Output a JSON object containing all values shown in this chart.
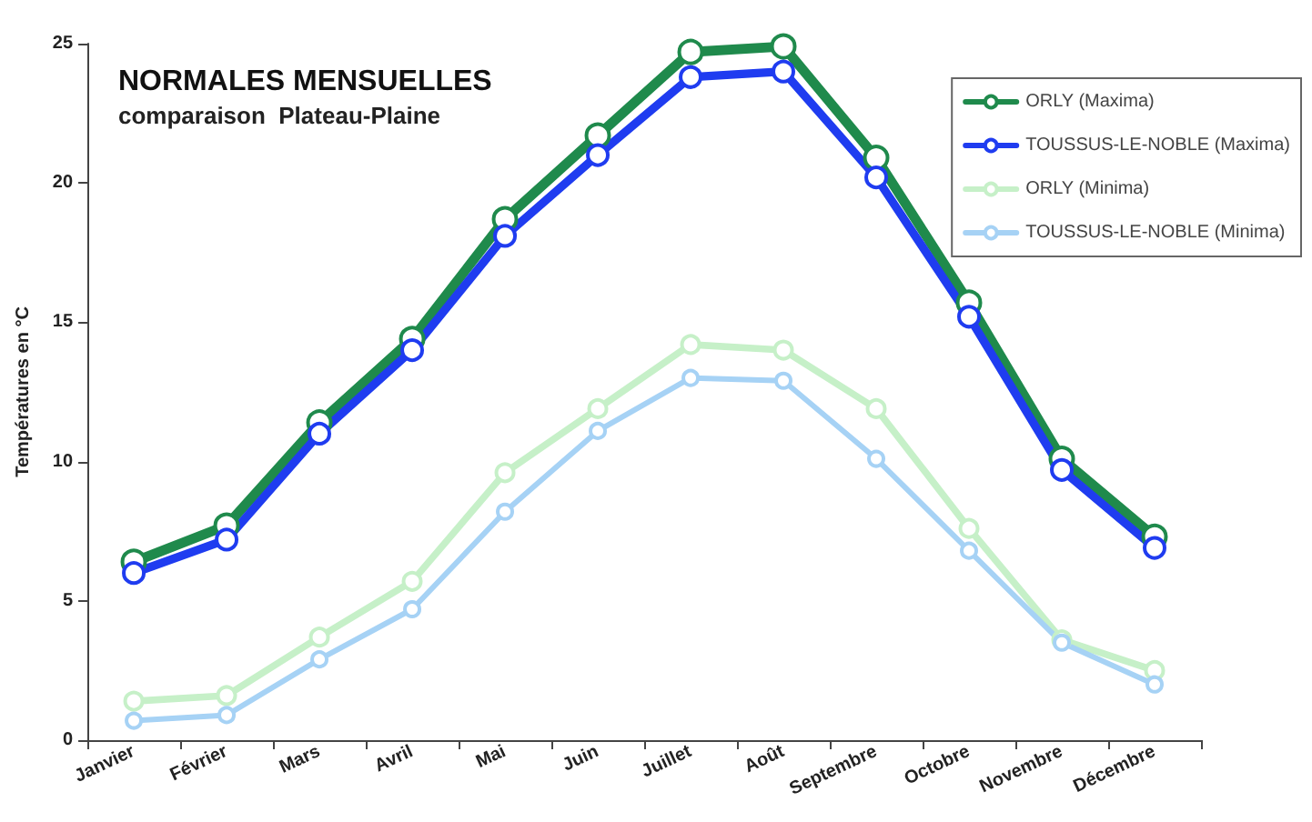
{
  "chart_data": {
    "type": "line",
    "title": "NORMALES MENSUELLES",
    "subtitle": "comparaison  Plateau-Plaine",
    "ylabel": "Températures en °C",
    "categories": [
      "Janvier",
      "Février",
      "Mars",
      "Avril",
      "Mai",
      "Juin",
      "Juillet",
      "Août",
      "Septembre",
      "Octobre",
      "Novembre",
      "Décembre"
    ],
    "series": [
      {
        "name": "ORLY (Maxima)",
        "color": "#1f8a4c",
        "values": [
          6.4,
          7.7,
          11.4,
          14.4,
          18.7,
          21.7,
          24.7,
          24.9,
          20.9,
          15.7,
          10.1,
          7.3
        ]
      },
      {
        "name": "TOUSSUS-LE-NOBLE (Maxima)",
        "color": "#1f3cf0",
        "values": [
          6.0,
          7.2,
          11.0,
          14.0,
          18.1,
          21.0,
          23.8,
          24.0,
          20.2,
          15.2,
          9.7,
          6.9
        ]
      },
      {
        "name": "ORLY (Minima)",
        "color": "#c6f0c8",
        "values": [
          1.4,
          1.6,
          3.7,
          5.7,
          9.6,
          11.9,
          14.2,
          14.0,
          11.9,
          7.6,
          3.6,
          2.5
        ]
      },
      {
        "name": "TOUSSUS-LE-NOBLE (Minima)",
        "color": "#a6d2f5",
        "values": [
          0.7,
          0.9,
          2.9,
          4.7,
          8.2,
          11.1,
          13.0,
          12.9,
          10.1,
          6.8,
          3.5,
          2.0
        ]
      }
    ],
    "ylim": [
      0,
      25
    ],
    "yticks": [
      0,
      5,
      10,
      15,
      20,
      25
    ],
    "grid": false,
    "legend": "top right",
    "marker": "circle",
    "line_style": "solid"
  }
}
